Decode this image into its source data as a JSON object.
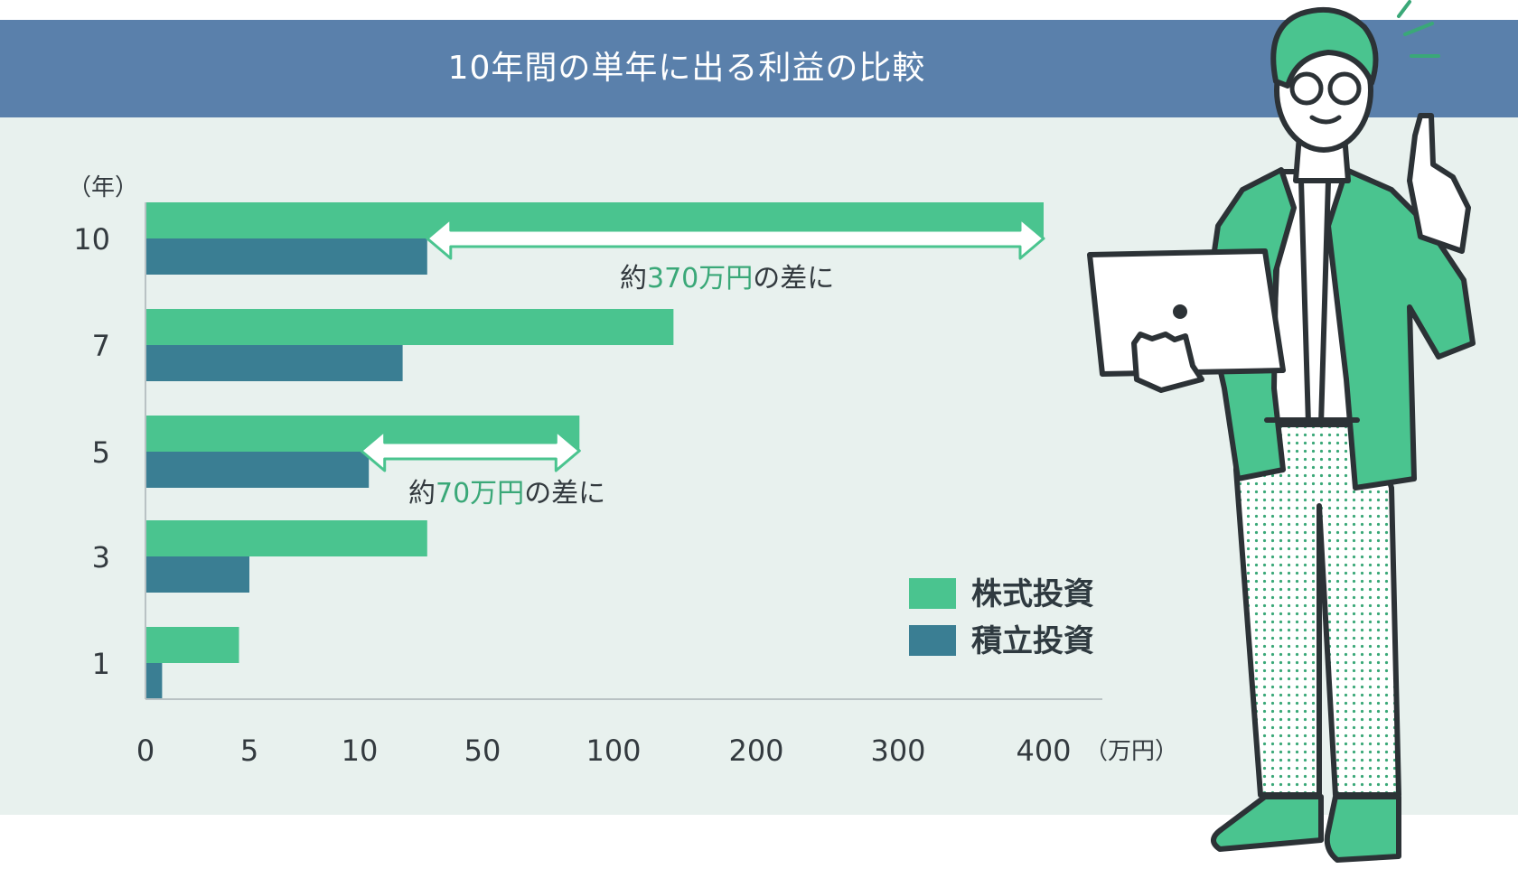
{
  "title": "10年間の単年に出る利益の比較",
  "colors": {
    "header": "#5a80ab",
    "panel": "#e8f1ee",
    "stock": "#4ac48f",
    "tsumitate": "#3a7e93",
    "highlight": "#3aa878"
  },
  "chart_data": {
    "type": "bar",
    "orientation": "horizontal",
    "categories": [
      "10",
      "7",
      "5",
      "3",
      "1"
    ],
    "y_unit_label": "（年）",
    "x_unit_label": "（万円）",
    "x_ticks": [
      "0",
      "5",
      "10",
      "50",
      "100",
      "200",
      "300",
      "400"
    ],
    "x_tick_values": [
      0,
      5,
      10,
      50,
      100,
      200,
      300,
      400
    ],
    "x_scale": "piecewise",
    "series": [
      {
        "name": "株式投資",
        "values": [
          400,
          142,
          87,
          32,
          4.5
        ]
      },
      {
        "name": "積立投資",
        "values": [
          32,
          24,
          13,
          5,
          0.8
        ]
      }
    ],
    "annotations": [
      {
        "category": "10",
        "prefix": "約",
        "amount": "370万円",
        "suffix": "の差に",
        "from": 32,
        "to": 400
      },
      {
        "category": "5",
        "prefix": "約",
        "amount": "70万円",
        "suffix": "の差に",
        "from": 10.5,
        "to": 87
      }
    ],
    "legend_position": "bottom-right",
    "grid": false
  }
}
